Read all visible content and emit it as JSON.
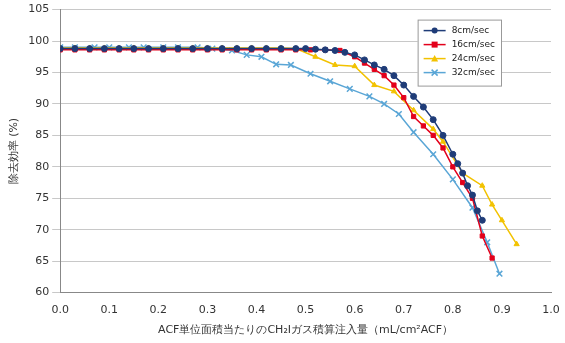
{
  "chart_data": {
    "type": "line",
    "x_label": "ACF単位面積当たりのCH₂Iガス積算注入量（mL/cm²ACF）",
    "y_label": "除去効率 (%)",
    "xlim": [
      0,
      1
    ],
    "xticks": [
      {
        "value": 0,
        "label": "0.0"
      },
      0.1,
      0.2,
      0.3,
      0.4,
      0.5,
      0.6,
      0.7,
      0.8,
      0.9,
      {
        "value": 1,
        "label": "1.0"
      }
    ],
    "ylim": [
      60,
      105
    ],
    "yticks": [
      60,
      65,
      70,
      75,
      80,
      85,
      90,
      95,
      100,
      105
    ],
    "grid": "y",
    "legend": "upper right",
    "series": [
      {
        "name": "8cm/sec",
        "color": "#1f3c78",
        "marker": "circle",
        "line_style": "solid",
        "x": [
          0,
          0.03,
          0.06,
          0.09,
          0.12,
          0.15,
          0.18,
          0.21,
          0.24,
          0.27,
          0.3,
          0.33,
          0.36,
          0.39,
          0.42,
          0.45,
          0.48,
          0.5,
          0.52,
          0.54,
          0.56,
          0.58,
          0.6,
          0.62,
          0.64,
          0.66,
          0.68,
          0.7,
          0.72,
          0.74,
          0.76,
          0.78,
          0.8,
          0.81,
          0.82,
          0.83,
          0.84,
          0.85,
          0.86
        ],
        "values": [
          98.8,
          98.8,
          98.8,
          98.8,
          98.8,
          98.8,
          98.8,
          98.8,
          98.8,
          98.8,
          98.8,
          98.8,
          98.8,
          98.8,
          98.8,
          98.8,
          98.8,
          98.8,
          98.7,
          98.6,
          98.5,
          98.2,
          97.8,
          97,
          96.2,
          95.5,
          94.5,
          93,
          91.2,
          89.5,
          87.5,
          85,
          82,
          80.5,
          79,
          77,
          75.5,
          73,
          71.5
        ]
      },
      {
        "name": "16cm/sec",
        "color": "#e3001b",
        "marker": "square",
        "line_style": "solid",
        "x": [
          0,
          0.03,
          0.06,
          0.09,
          0.12,
          0.15,
          0.18,
          0.21,
          0.24,
          0.27,
          0.3,
          0.33,
          0.36,
          0.39,
          0.42,
          0.45,
          0.48,
          0.51,
          0.54,
          0.57,
          0.6,
          0.62,
          0.64,
          0.66,
          0.68,
          0.7,
          0.72,
          0.74,
          0.76,
          0.78,
          0.8,
          0.82,
          0.84,
          0.86,
          0.88
        ],
        "values": [
          98.6,
          98.6,
          98.6,
          98.6,
          98.6,
          98.6,
          98.6,
          98.6,
          98.6,
          98.6,
          98.6,
          98.6,
          98.6,
          98.6,
          98.6,
          98.6,
          98.6,
          98.6,
          98.6,
          98.5,
          97.5,
          96.5,
          95.5,
          94.5,
          93,
          91,
          88,
          86.5,
          85,
          83,
          80,
          77.5,
          75,
          69,
          65.5
        ]
      },
      {
        "name": "24cm/sec",
        "color": "#f2c200",
        "marker": "triangle",
        "line_style": "solid",
        "x": [
          0,
          0.03,
          0.06,
          0.09,
          0.12,
          0.15,
          0.18,
          0.21,
          0.24,
          0.27,
          0.3,
          0.33,
          0.36,
          0.39,
          0.42,
          0.45,
          0.48,
          0.52,
          0.56,
          0.6,
          0.64,
          0.68,
          0.72,
          0.76,
          0.78,
          0.82,
          0.86,
          0.88,
          0.9,
          0.93
        ],
        "values": [
          98.9,
          98.9,
          98.9,
          98.9,
          98.9,
          98.9,
          98.9,
          98.9,
          98.9,
          98.9,
          98.9,
          98.9,
          98.9,
          98.9,
          98.9,
          98.9,
          98.8,
          97.5,
          96.2,
          96,
          93,
          92,
          89,
          86,
          84,
          79,
          77,
          74,
          71.5,
          67.7
        ]
      },
      {
        "name": "32cm/sec",
        "color": "#5aa6d6",
        "marker": "x",
        "line_style": "solid",
        "x": [
          0,
          0.03,
          0.07,
          0.1,
          0.14,
          0.17,
          0.21,
          0.24,
          0.28,
          0.31,
          0.35,
          0.38,
          0.41,
          0.44,
          0.47,
          0.51,
          0.55,
          0.59,
          0.63,
          0.66,
          0.69,
          0.72,
          0.76,
          0.8,
          0.84,
          0.87,
          0.895
        ],
        "values": [
          99,
          99,
          99,
          99,
          99,
          99,
          99,
          99,
          99,
          98.8,
          98.5,
          97.8,
          97.5,
          96.3,
          96.2,
          94.8,
          93.6,
          92.4,
          91.2,
          90,
          88.4,
          85.5,
          82,
          78,
          73.5,
          68,
          63
        ]
      }
    ]
  }
}
